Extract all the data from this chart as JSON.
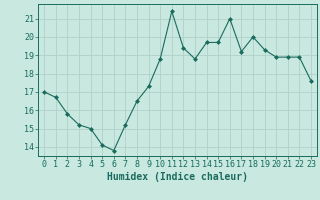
{
  "x": [
    0,
    1,
    2,
    3,
    4,
    5,
    6,
    7,
    8,
    9,
    10,
    11,
    12,
    13,
    14,
    15,
    16,
    17,
    18,
    19,
    20,
    21,
    22,
    23
  ],
  "y": [
    17.0,
    16.7,
    15.8,
    15.2,
    15.0,
    14.1,
    13.8,
    15.2,
    16.5,
    17.3,
    18.8,
    21.4,
    19.4,
    18.8,
    19.7,
    19.7,
    21.0,
    19.2,
    20.0,
    19.3,
    18.9,
    18.9,
    18.9,
    17.6
  ],
  "line_color": "#1a6b5e",
  "marker": "D",
  "marker_size": 2.0,
  "background_color": "#c8e8e0",
  "grid_color": "#b0d0c8",
  "xlabel": "Humidex (Indice chaleur)",
  "ylim": [
    13.5,
    21.8
  ],
  "yticks": [
    14,
    15,
    16,
    17,
    18,
    19,
    20,
    21
  ],
  "xlim": [
    -0.5,
    23.5
  ],
  "xticks": [
    0,
    1,
    2,
    3,
    4,
    5,
    6,
    7,
    8,
    9,
    10,
    11,
    12,
    13,
    14,
    15,
    16,
    17,
    18,
    19,
    20,
    21,
    22,
    23
  ],
  "tick_color": "#1a6b5e",
  "label_fontsize": 7,
  "tick_fontsize": 6
}
